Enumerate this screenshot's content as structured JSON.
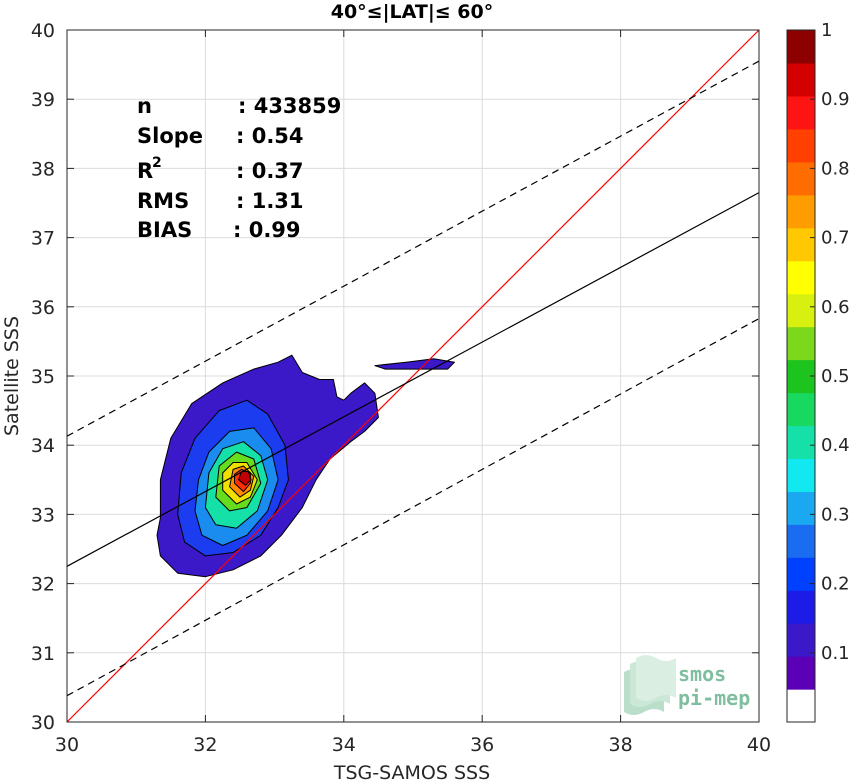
{
  "chart_data": {
    "type": "heatmap",
    "subtype": "filled-contour density scatter",
    "title": "40°≤|LAT|≤ 60°",
    "xlabel": "TSG-SAMOS SSS",
    "ylabel": "Satellite SSS",
    "xlim": [
      30,
      40
    ],
    "ylim": [
      30,
      40
    ],
    "xticks": [
      "30",
      "32",
      "34",
      "36",
      "38",
      "40"
    ],
    "yticks": [
      "30",
      "31",
      "32",
      "33",
      "34",
      "35",
      "36",
      "37",
      "38",
      "39",
      "40"
    ],
    "grid": true,
    "stats": [
      {
        "label": "n",
        "value": ": 433859"
      },
      {
        "label": "Slope",
        "value": ": 0.54"
      },
      {
        "label": "R",
        "sup": "2",
        "value": ": 0.37"
      },
      {
        "label": "RMS",
        "value": ": 1.31"
      },
      {
        "label": "BIAS",
        "value": ": 0.99"
      }
    ],
    "lines": [
      {
        "role": "one-to-one",
        "style": "solid",
        "color": "#ff0000",
        "points": [
          [
            30,
            30
          ],
          [
            40,
            40
          ]
        ]
      },
      {
        "role": "regression",
        "style": "solid",
        "color": "#000000",
        "points": [
          [
            30,
            32.25
          ],
          [
            40,
            37.65
          ]
        ]
      },
      {
        "role": "upper-bound",
        "style": "dashed",
        "color": "#000000",
        "points": [
          [
            30,
            34.13
          ],
          [
            40,
            39.55
          ]
        ]
      },
      {
        "role": "lower-bound",
        "style": "dashed",
        "color": "#000000",
        "points": [
          [
            30,
            30.38
          ],
          [
            40,
            35.83
          ]
        ]
      }
    ],
    "contours": [
      {
        "level": 0.05,
        "color": "#3b18c8",
        "polygons": [
          [
            [
              31.35,
              32.95
            ],
            [
              31.3,
              32.7
            ],
            [
              31.35,
              32.4
            ],
            [
              31.6,
              32.15
            ],
            [
              32.0,
              32.1
            ],
            [
              32.4,
              32.2
            ],
            [
              32.8,
              32.4
            ],
            [
              33.1,
              32.7
            ],
            [
              33.4,
              33.1
            ],
            [
              33.6,
              33.5
            ],
            [
              33.8,
              33.8
            ],
            [
              34.1,
              34.05
            ],
            [
              34.3,
              34.2
            ],
            [
              34.5,
              34.4
            ],
            [
              34.45,
              34.75
            ],
            [
              34.3,
              34.9
            ],
            [
              34.1,
              34.75
            ],
            [
              34.0,
              34.65
            ],
            [
              33.9,
              34.7
            ],
            [
              33.85,
              34.95
            ],
            [
              33.65,
              34.95
            ],
            [
              33.4,
              35.05
            ],
            [
              33.25,
              35.3
            ],
            [
              33.05,
              35.2
            ],
            [
              32.7,
              35.1
            ],
            [
              32.25,
              34.9
            ],
            [
              31.8,
              34.6
            ],
            [
              31.5,
              34.1
            ],
            [
              31.35,
              33.5
            ]
          ],
          [
            [
              34.45,
              35.15
            ],
            [
              34.9,
              35.2
            ],
            [
              35.3,
              35.25
            ],
            [
              35.6,
              35.2
            ],
            [
              35.5,
              35.1
            ],
            [
              35.0,
              35.1
            ],
            [
              34.6,
              35.1
            ]
          ]
        ]
      },
      {
        "level": 0.15,
        "color": "#1c3cf0",
        "polygons": [
          [
            [
              31.6,
              33.0
            ],
            [
              31.7,
              32.6
            ],
            [
              32.0,
              32.4
            ],
            [
              32.4,
              32.45
            ],
            [
              32.8,
              32.7
            ],
            [
              33.05,
              33.1
            ],
            [
              33.2,
              33.5
            ],
            [
              33.15,
              34.0
            ],
            [
              32.9,
              34.45
            ],
            [
              32.6,
              34.65
            ],
            [
              32.2,
              34.5
            ],
            [
              31.85,
              34.1
            ],
            [
              31.65,
              33.6
            ]
          ]
        ]
      },
      {
        "level": 0.25,
        "color": "#1a8cf0",
        "polygons": [
          [
            [
              31.85,
              33.05
            ],
            [
              31.95,
              32.7
            ],
            [
              32.25,
              32.55
            ],
            [
              32.6,
              32.7
            ],
            [
              32.9,
              33.05
            ],
            [
              33.05,
              33.5
            ],
            [
              32.95,
              33.95
            ],
            [
              32.7,
              34.25
            ],
            [
              32.35,
              34.2
            ],
            [
              32.05,
              33.9
            ],
            [
              31.9,
              33.5
            ]
          ]
        ]
      },
      {
        "level": 0.4,
        "color": "#14e0a8",
        "polygons": [
          [
            [
              32.0,
              33.1
            ],
            [
              32.15,
              32.85
            ],
            [
              32.45,
              32.8
            ],
            [
              32.75,
              33.05
            ],
            [
              32.9,
              33.5
            ],
            [
              32.8,
              33.85
            ],
            [
              32.55,
              34.05
            ],
            [
              32.25,
              33.95
            ],
            [
              32.05,
              33.6
            ]
          ]
        ]
      },
      {
        "level": 0.55,
        "color": "#66dc1e",
        "polygons": [
          [
            [
              32.15,
              33.25
            ],
            [
              32.35,
              33.05
            ],
            [
              32.6,
              33.1
            ],
            [
              32.8,
              33.45
            ],
            [
              32.7,
              33.8
            ],
            [
              32.45,
              33.9
            ],
            [
              32.2,
              33.7
            ]
          ]
        ]
      },
      {
        "level": 0.65,
        "color": "#f0e000",
        "polygons": [
          [
            [
              32.25,
              33.35
            ],
            [
              32.45,
              33.15
            ],
            [
              32.65,
              33.25
            ],
            [
              32.75,
              33.5
            ],
            [
              32.6,
              33.75
            ],
            [
              32.4,
              33.75
            ],
            [
              32.25,
              33.6
            ]
          ]
        ]
      },
      {
        "level": 0.75,
        "color": "#ff8a00",
        "polygons": [
          [
            [
              32.35,
              33.4
            ],
            [
              32.5,
              33.25
            ],
            [
              32.65,
              33.35
            ],
            [
              32.7,
              33.55
            ],
            [
              32.55,
              33.7
            ],
            [
              32.4,
              33.65
            ]
          ]
        ]
      },
      {
        "level": 0.85,
        "color": "#ff3000",
        "polygons": [
          [
            [
              32.42,
              33.45
            ],
            [
              32.55,
              33.33
            ],
            [
              32.65,
              33.45
            ],
            [
              32.65,
              33.6
            ],
            [
              32.52,
              33.65
            ],
            [
              32.42,
              33.58
            ]
          ]
        ]
      },
      {
        "level": 0.95,
        "color": "#c00000",
        "polygons": [
          [
            [
              32.48,
              33.5
            ],
            [
              32.58,
              33.42
            ],
            [
              32.66,
              33.5
            ],
            [
              32.62,
              33.62
            ],
            [
              32.52,
              33.62
            ]
          ]
        ]
      }
    ],
    "colorbar": {
      "range": [
        0,
        1
      ],
      "ticks": [
        "0.1",
        "0.2",
        "0.3",
        "0.4",
        "0.5",
        "0.6",
        "0.7",
        "0.8",
        "0.9",
        "1"
      ],
      "colors": [
        "#ffffff",
        "#5c00b8",
        "#3b18c8",
        "#1c1ce6",
        "#0040ff",
        "#1a6cf0",
        "#1aa8f0",
        "#12e8f0",
        "#14e0a8",
        "#19d860",
        "#1ec41e",
        "#7cd81a",
        "#d8f010",
        "#ffff00",
        "#ffc800",
        "#ff9c00",
        "#ff6c00",
        "#ff4000",
        "#ff1414",
        "#d40000",
        "#8c0000"
      ]
    },
    "logo": {
      "line1": "smos",
      "line2": "pi-mep"
    }
  }
}
